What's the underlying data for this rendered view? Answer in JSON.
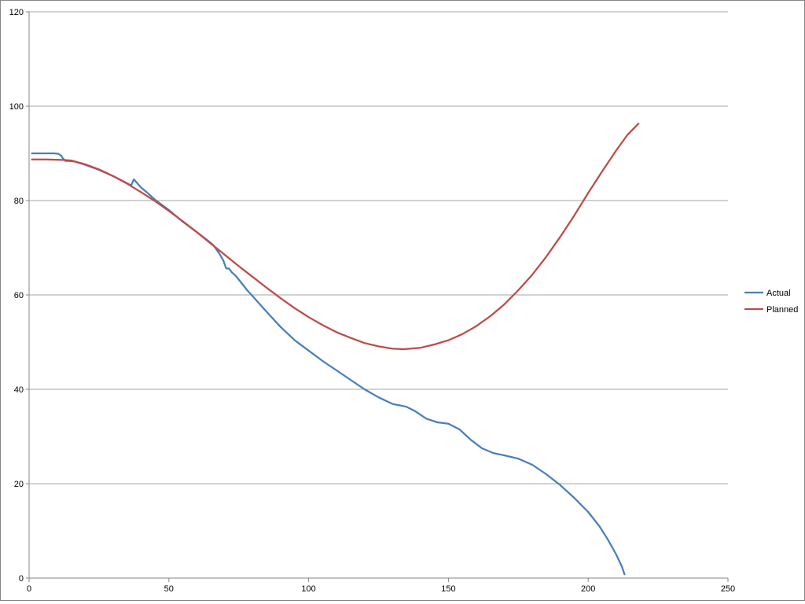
{
  "chart_data": {
    "type": "line",
    "title": "",
    "xlabel": "",
    "ylabel": "",
    "xlim": [
      0,
      250
    ],
    "ylim": [
      0,
      120
    ],
    "x_ticks": [
      0,
      50,
      100,
      150,
      200,
      250
    ],
    "y_ticks": [
      0,
      20,
      40,
      60,
      80,
      100,
      120
    ],
    "x_tick_labels": [
      "0",
      "50",
      "100",
      "150",
      "200",
      "250"
    ],
    "y_tick_labels": [
      "0",
      "20",
      "40",
      "60",
      "80",
      "100",
      "120"
    ],
    "grid": {
      "horizontal": true,
      "vertical": false
    },
    "legend_position": "right",
    "series": [
      {
        "name": "Actual",
        "color": "#4a7ebb",
        "points": [
          [
            1,
            90.0
          ],
          [
            5,
            90.0
          ],
          [
            9,
            90.0
          ],
          [
            10.5,
            89.9
          ],
          [
            11.5,
            89.5
          ],
          [
            12,
            89.0
          ],
          [
            13,
            88.4
          ],
          [
            14,
            88.4
          ],
          [
            16,
            88.3
          ],
          [
            20,
            87.6
          ],
          [
            25,
            86.5
          ],
          [
            30,
            85.2
          ],
          [
            34,
            84.0
          ],
          [
            36.5,
            83.2
          ],
          [
            37.5,
            84.5
          ],
          [
            38.5,
            83.8
          ],
          [
            40,
            82.8
          ],
          [
            42,
            81.8
          ],
          [
            45,
            80.2
          ],
          [
            50,
            78.0
          ],
          [
            55,
            75.5
          ],
          [
            60,
            73.3
          ],
          [
            64,
            71.5
          ],
          [
            66,
            70.5
          ],
          [
            68,
            68.8
          ],
          [
            69.5,
            67.3
          ],
          [
            70.5,
            65.6
          ],
          [
            71.5,
            65.6
          ],
          [
            72.5,
            64.8
          ],
          [
            74,
            64.0
          ],
          [
            76,
            62.5
          ],
          [
            78,
            61.0
          ],
          [
            80,
            59.7
          ],
          [
            85,
            56.4
          ],
          [
            90,
            53.2
          ],
          [
            95,
            50.4
          ],
          [
            100,
            48.2
          ],
          [
            105,
            46.0
          ],
          [
            110,
            44.0
          ],
          [
            115,
            42.0
          ],
          [
            120,
            40.0
          ],
          [
            125,
            38.3
          ],
          [
            130,
            36.9
          ],
          [
            135,
            36.3
          ],
          [
            138,
            35.4
          ],
          [
            142,
            33.8
          ],
          [
            146,
            33.0
          ],
          [
            150,
            32.7
          ],
          [
            154,
            31.5
          ],
          [
            158,
            29.3
          ],
          [
            162,
            27.5
          ],
          [
            166,
            26.5
          ],
          [
            170,
            26.0
          ],
          [
            175,
            25.3
          ],
          [
            180,
            24.0
          ],
          [
            185,
            22.0
          ],
          [
            190,
            19.7
          ],
          [
            195,
            17.0
          ],
          [
            200,
            14.0
          ],
          [
            204,
            11.0
          ],
          [
            207,
            8.2
          ],
          [
            210,
            5.0
          ],
          [
            212,
            2.5
          ],
          [
            213,
            0.8
          ]
        ]
      },
      {
        "name": "Planned",
        "color": "#be4b48",
        "points": [
          [
            1,
            88.7
          ],
          [
            6,
            88.7
          ],
          [
            12,
            88.6
          ],
          [
            15,
            88.5
          ],
          [
            20,
            87.7
          ],
          [
            25,
            86.6
          ],
          [
            30,
            85.2
          ],
          [
            35,
            83.6
          ],
          [
            40,
            81.8
          ],
          [
            45,
            79.9
          ],
          [
            50,
            77.8
          ],
          [
            55,
            75.6
          ],
          [
            60,
            73.3
          ],
          [
            65,
            70.9
          ],
          [
            70,
            68.5
          ],
          [
            75,
            66.1
          ],
          [
            80,
            63.8
          ],
          [
            85,
            61.5
          ],
          [
            90,
            59.3
          ],
          [
            95,
            57.2
          ],
          [
            100,
            55.3
          ],
          [
            105,
            53.6
          ],
          [
            110,
            52.1
          ],
          [
            115,
            50.9
          ],
          [
            120,
            49.8
          ],
          [
            125,
            49.1
          ],
          [
            130,
            48.6
          ],
          [
            134,
            48.5
          ],
          [
            140,
            48.8
          ],
          [
            145,
            49.5
          ],
          [
            150,
            50.4
          ],
          [
            155,
            51.7
          ],
          [
            160,
            53.4
          ],
          [
            165,
            55.5
          ],
          [
            170,
            58.0
          ],
          [
            175,
            61.0
          ],
          [
            180,
            64.3
          ],
          [
            185,
            68.1
          ],
          [
            190,
            72.3
          ],
          [
            195,
            76.8
          ],
          [
            200,
            81.6
          ],
          [
            205,
            86.2
          ],
          [
            210,
            90.6
          ],
          [
            214,
            93.9
          ],
          [
            218,
            96.3
          ]
        ]
      }
    ]
  }
}
